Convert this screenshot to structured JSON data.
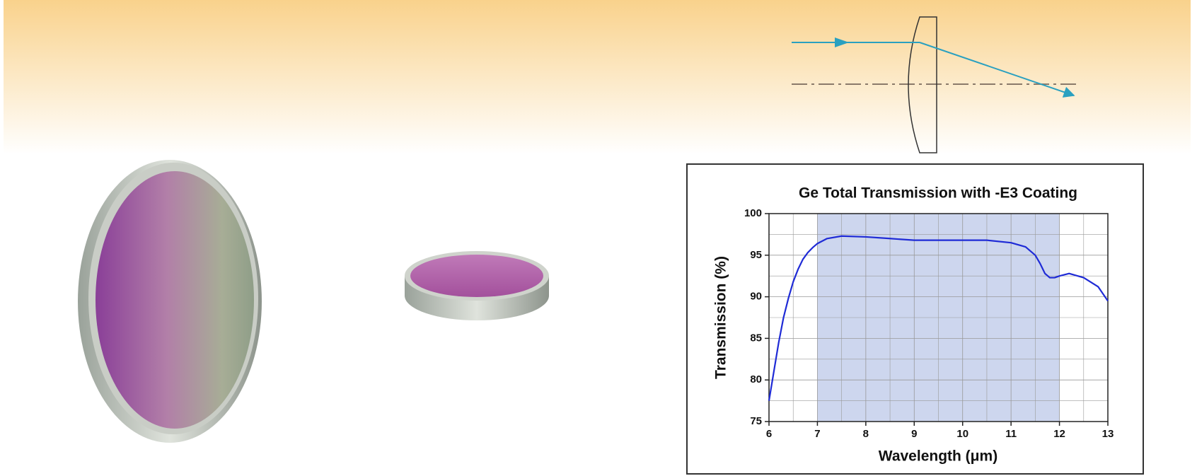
{
  "chart_data": {
    "type": "line",
    "title": "Ge Total Transmission with -E3 Coating",
    "x_label": "Wavelength (μm)",
    "y_label": "Transmission (%)",
    "xlim": [
      6,
      13
    ],
    "xticks": [
      6,
      7,
      8,
      9,
      10,
      11,
      12,
      13
    ],
    "ylim": [
      75,
      100
    ],
    "yticks": [
      75,
      80,
      85,
      90,
      95,
      100
    ],
    "grid": true,
    "shaded_xrange": [
      7,
      12
    ],
    "shade_color": "#cdd6ee",
    "series": [
      {
        "color": "#1f2bd6",
        "x": [
          6,
          6.1,
          6.2,
          6.3,
          6.4,
          6.5,
          6.6,
          6.7,
          6.8,
          6.9,
          7,
          7.2,
          7.5,
          8,
          8.5,
          9,
          9.5,
          10,
          10.5,
          11,
          11.3,
          11.5,
          11.6,
          11.7,
          11.8,
          11.9,
          12,
          12.2,
          12.5,
          12.8,
          13
        ],
        "values": [
          77.5,
          81,
          84.5,
          87.5,
          89.8,
          91.8,
          93.3,
          94.5,
          95.3,
          95.9,
          96.4,
          97,
          97.3,
          97.2,
          97,
          96.8,
          96.8,
          96.8,
          96.8,
          96.5,
          96,
          95,
          94,
          92.8,
          92.3,
          92.3,
          92.5,
          92.8,
          92.3,
          91.2,
          89.5
        ]
      }
    ]
  }
}
